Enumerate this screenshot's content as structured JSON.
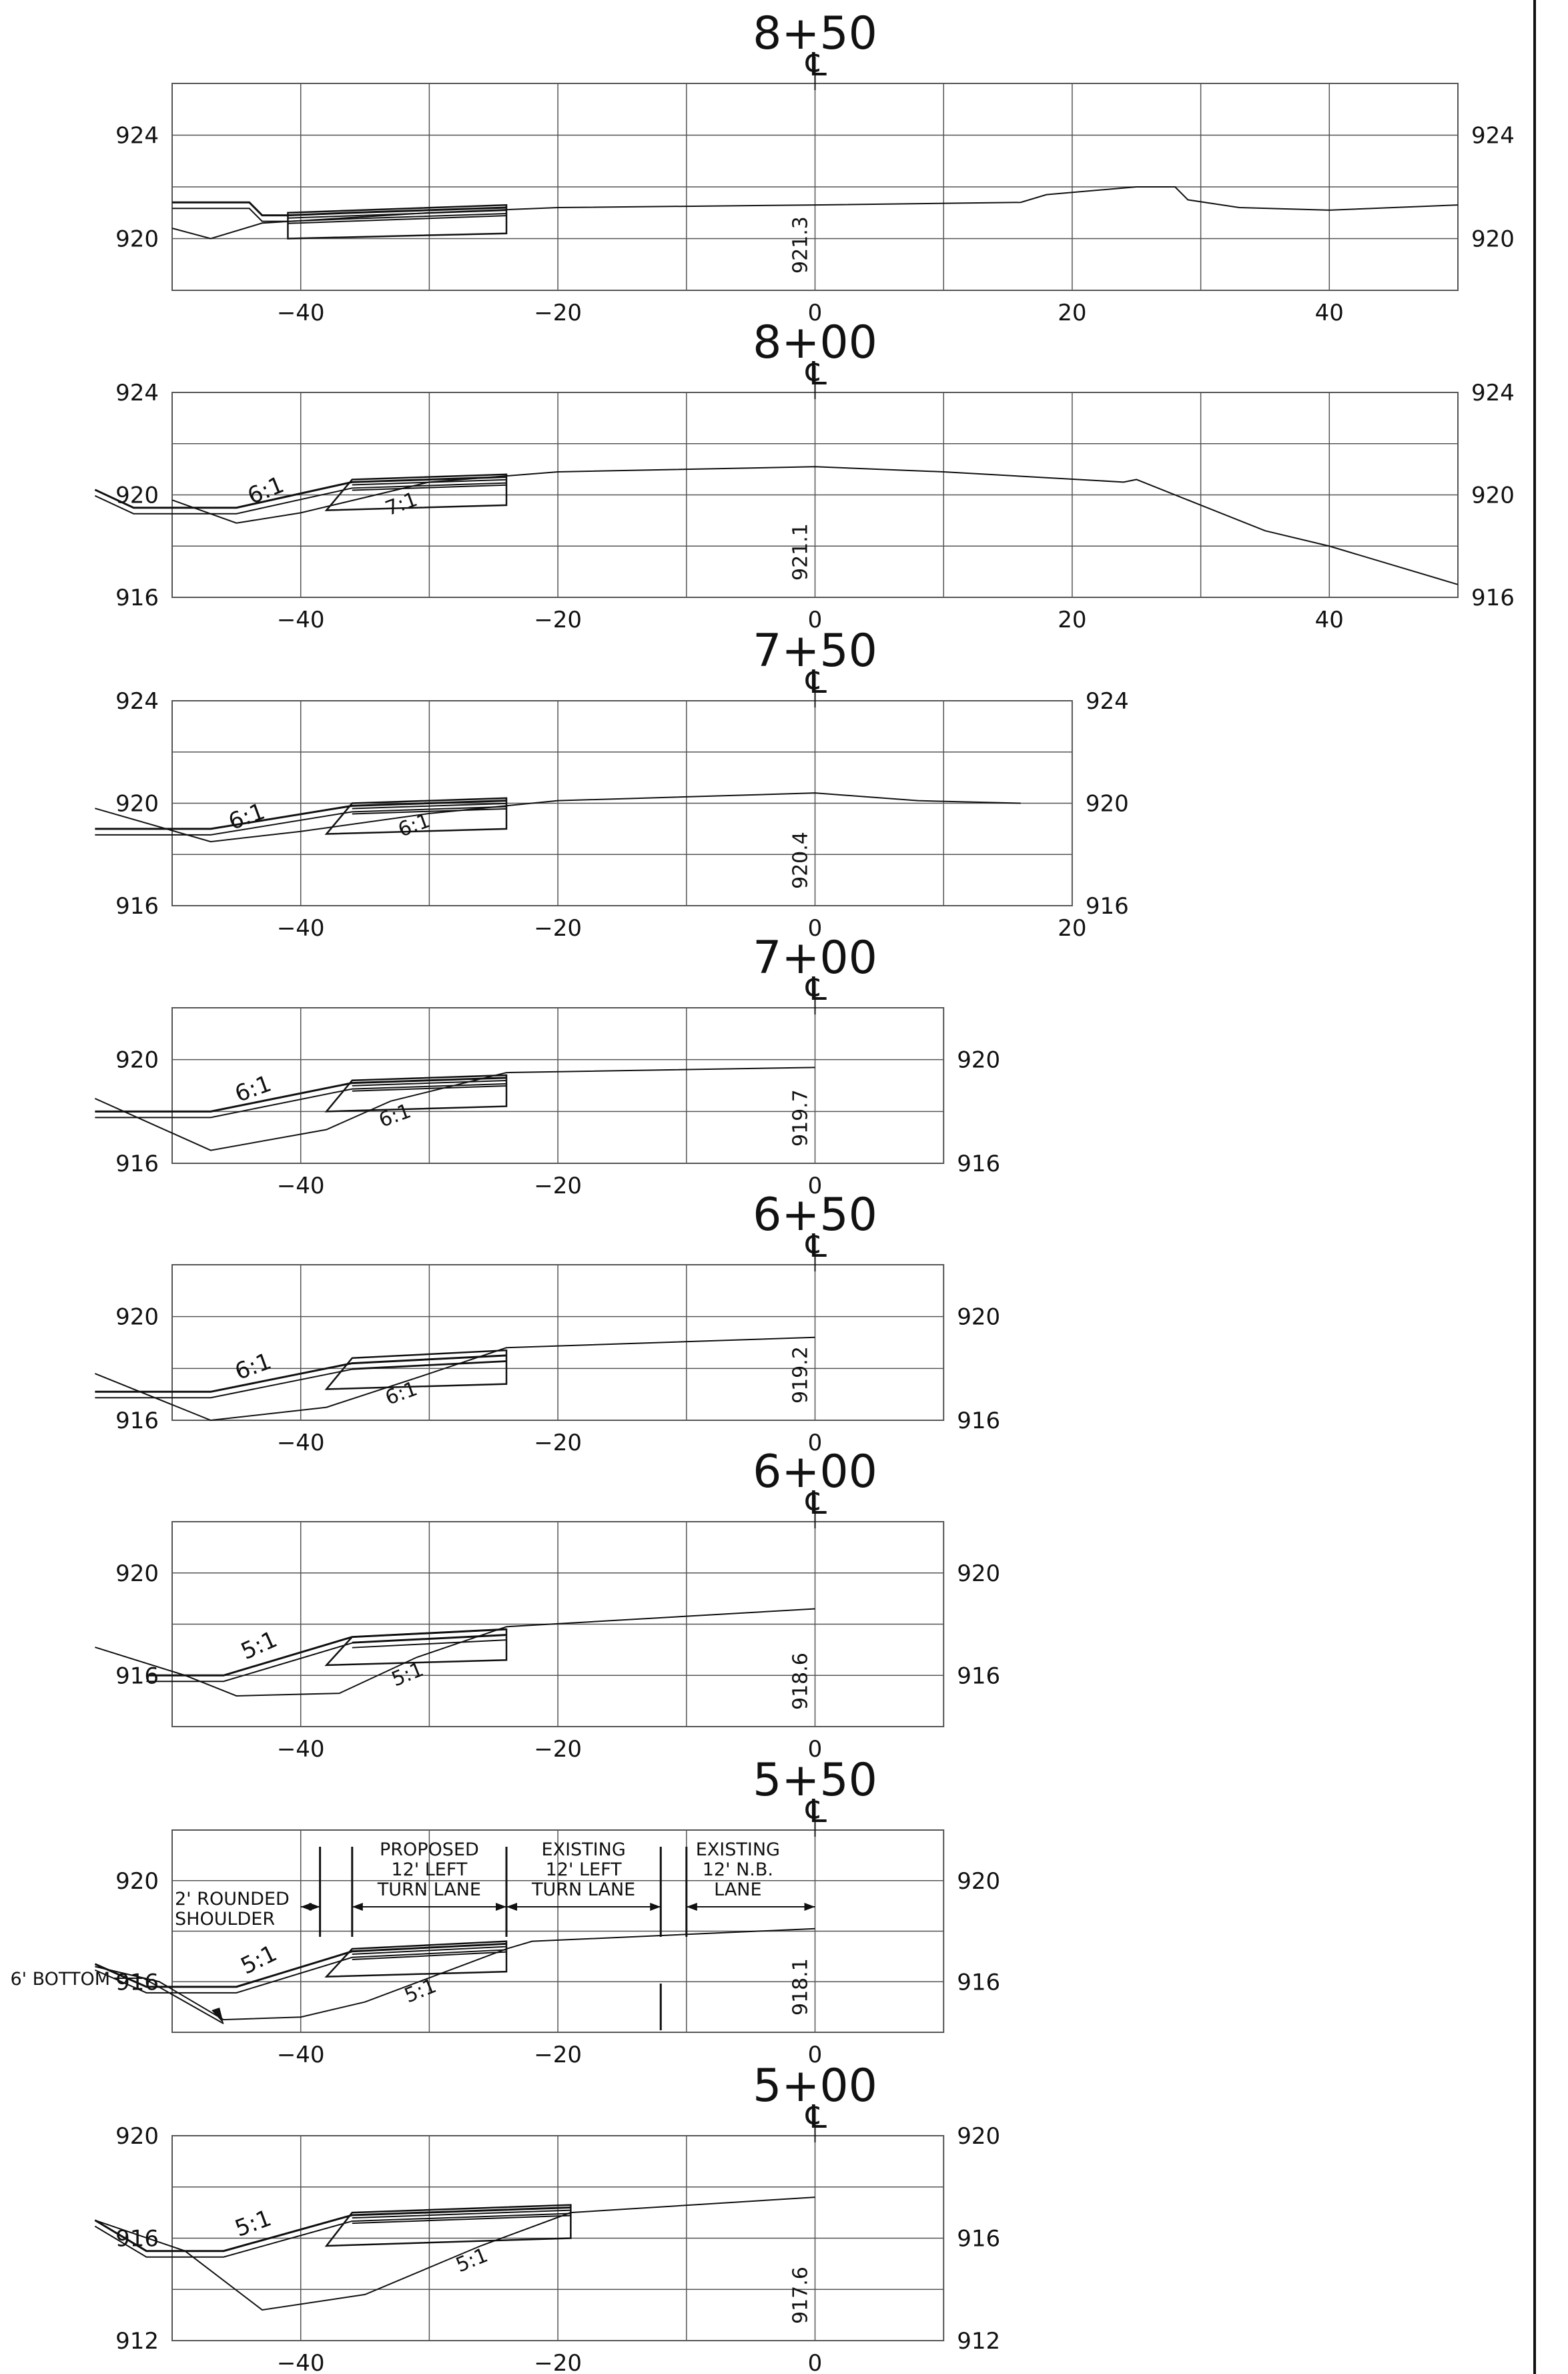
{
  "sheet": {
    "line_color": "#111111",
    "grid_color": "#555555",
    "background": "#ffffff"
  },
  "sections": [
    {
      "station": "8+50",
      "centerline_symbol": "℄",
      "cl_elevation": "921.3",
      "x_range": [
        -50,
        50
      ],
      "y_range": [
        918,
        926
      ],
      "x_ticks": [
        -40,
        -20,
        0,
        20,
        40
      ],
      "x_tick_labels": [
        "−40",
        "−20",
        "0",
        "20",
        "40"
      ],
      "y_ticks": [
        920,
        924
      ],
      "y_tick_labels": [
        "920",
        "924"
      ],
      "existing_ground": [
        [
          -50,
          920.4
        ],
        [
          -47,
          920
        ],
        [
          -43,
          920.6
        ],
        [
          -30,
          921
        ],
        [
          -20,
          921.2
        ],
        [
          0,
          921.3
        ],
        [
          16,
          921.4
        ],
        [
          18,
          921.7
        ],
        [
          25,
          922
        ],
        [
          28,
          922
        ],
        [
          29,
          921.5
        ],
        [
          33,
          921.2
        ],
        [
          40,
          921.1
        ],
        [
          50,
          921.3
        ]
      ],
      "proposed_surface": [
        [
          -50,
          921.4
        ],
        [
          -44,
          921.4
        ],
        [
          -43,
          920.9
        ],
        [
          -41,
          920.9
        ],
        [
          -36,
          921
        ],
        [
          -24,
          921.2
        ]
      ],
      "pavement": [
        [
          -41,
          921
        ],
        [
          -24,
          921.3
        ],
        [
          -24,
          920.2
        ],
        [
          -41,
          920
        ]
      ],
      "foreslope": null,
      "existing_slope": null
    },
    {
      "station": "8+00",
      "centerline_symbol": "℄",
      "cl_elevation": "921.1",
      "x_range": [
        -50,
        50
      ],
      "y_range": [
        916,
        924
      ],
      "x_ticks": [
        -40,
        -20,
        0,
        20,
        40
      ],
      "x_tick_labels": [
        "−40",
        "−20",
        "0",
        "20",
        "40"
      ],
      "y_ticks": [
        916,
        920,
        924
      ],
      "y_tick_labels": [
        "916",
        "920",
        "924"
      ],
      "existing_ground": [
        [
          -50,
          919.8
        ],
        [
          -45,
          918.9
        ],
        [
          -40,
          919.3
        ],
        [
          -30,
          920.5
        ],
        [
          -20,
          920.9
        ],
        [
          0,
          921.1
        ],
        [
          10,
          920.9
        ],
        [
          24,
          920.5
        ],
        [
          25,
          920.6
        ],
        [
          35,
          918.6
        ],
        [
          40,
          918
        ],
        [
          50,
          916.5
        ]
      ],
      "proposed_surface": [
        [
          -56,
          920.2
        ],
        [
          -53,
          919.5
        ],
        [
          -45,
          919.5
        ],
        [
          -36,
          920.5
        ],
        [
          -24,
          920.7
        ]
      ],
      "pavement": [
        [
          -36,
          920.6
        ],
        [
          -24,
          920.8
        ],
        [
          -24,
          919.6
        ],
        [
          -38,
          919.4
        ]
      ],
      "foreslope": {
        "label": "6:1",
        "x": -42.5,
        "y": 919.9,
        "angle": -22
      },
      "existing_slope": {
        "label": "7:1",
        "x": -32,
        "y": 919.4,
        "angle": -20
      }
    },
    {
      "station": "7+50",
      "centerline_symbol": "℄",
      "cl_elevation": "920.4",
      "x_range": [
        -50,
        20
      ],
      "y_range": [
        916,
        924
      ],
      "x_ticks": [
        -40,
        -20,
        0,
        20
      ],
      "x_tick_labels": [
        "−40",
        "−20",
        "0",
        "20"
      ],
      "y_ticks": [
        916,
        920,
        924
      ],
      "y_tick_labels": [
        "916",
        "920",
        "924"
      ],
      "existing_ground": [
        [
          -56,
          919.8
        ],
        [
          -47,
          918.5
        ],
        [
          -40,
          918.9
        ],
        [
          -30,
          919.6
        ],
        [
          -20,
          920.1
        ],
        [
          0,
          920.4
        ],
        [
          8,
          920.1
        ],
        [
          16,
          920
        ]
      ],
      "proposed_surface": [
        [
          -56,
          919
        ],
        [
          -47,
          919
        ],
        [
          -36,
          919.9
        ],
        [
          -24,
          920.1
        ]
      ],
      "pavement": [
        [
          -36,
          920
        ],
        [
          -24,
          920.2
        ],
        [
          -24,
          919
        ],
        [
          -38,
          918.8
        ]
      ],
      "foreslope": {
        "label": "6:1",
        "x": -44,
        "y": 919.2,
        "angle": -20
      },
      "existing_slope": {
        "label": "6:1",
        "x": -31,
        "y": 918.9,
        "angle": -20
      }
    },
    {
      "station": "7+00",
      "centerline_symbol": "℄",
      "cl_elevation": "919.7",
      "x_range": [
        -50,
        10
      ],
      "y_range": [
        916,
        922
      ],
      "x_ticks": [
        -40,
        -20,
        0
      ],
      "x_tick_labels": [
        "−40",
        "−20",
        "0"
      ],
      "y_ticks": [
        916,
        920
      ],
      "y_tick_labels": [
        "916",
        "920"
      ],
      "existing_ground": [
        [
          -56,
          918.5
        ],
        [
          -47,
          916.5
        ],
        [
          -38,
          917.3
        ],
        [
          -33,
          918.4
        ],
        [
          -24,
          919.5
        ],
        [
          0,
          919.7
        ]
      ],
      "proposed_surface": [
        [
          -56,
          918
        ],
        [
          -47,
          918
        ],
        [
          -36,
          919.1
        ],
        [
          -24,
          919.3
        ]
      ],
      "pavement": [
        [
          -36,
          919.2
        ],
        [
          -24,
          919.4
        ],
        [
          -24,
          918.2
        ],
        [
          -38,
          918
        ]
      ],
      "foreslope": {
        "label": "6:1",
        "x": -43.5,
        "y": 918.6,
        "angle": -20
      },
      "existing_slope": {
        "label": "6:1",
        "x": -32.5,
        "y": 917.6,
        "angle": -20
      }
    },
    {
      "station": "6+50",
      "centerline_symbol": "℄",
      "cl_elevation": "919.2",
      "x_range": [
        -50,
        10
      ],
      "y_range": [
        916,
        922
      ],
      "x_ticks": [
        -40,
        -20,
        0
      ],
      "x_tick_labels": [
        "−40",
        "−20",
        "0"
      ],
      "y_ticks": [
        916,
        920
      ],
      "y_tick_labels": [
        "916",
        "920"
      ],
      "existing_ground": [
        [
          -56,
          917.8
        ],
        [
          -47,
          916
        ],
        [
          -38,
          916.5
        ],
        [
          -30,
          917.8
        ],
        [
          -24,
          918.8
        ],
        [
          0,
          919.2
        ]
      ],
      "proposed_surface": [
        [
          -56,
          917.1
        ],
        [
          -47,
          917.1
        ],
        [
          -36,
          918.2
        ],
        [
          -24,
          918.5
        ]
      ],
      "pavement": [
        [
          -36,
          918.4
        ],
        [
          -24,
          918.7
        ],
        [
          -24,
          917.4
        ],
        [
          -38,
          917.2
        ]
      ],
      "foreslope": {
        "label": "6:1",
        "x": -43.5,
        "y": 917.8,
        "angle": -20
      },
      "existing_slope": {
        "label": "6:1",
        "x": -32,
        "y": 916.8,
        "angle": -20
      }
    },
    {
      "station": "6+00",
      "centerline_symbol": "℄",
      "cl_elevation": "918.6",
      "x_range": [
        -50,
        10
      ],
      "y_range": [
        914,
        922
      ],
      "x_ticks": [
        -40,
        -20,
        0
      ],
      "x_tick_labels": [
        "−40",
        "−20",
        "0"
      ],
      "y_ticks": [
        916,
        920
      ],
      "y_tick_labels": [
        "916",
        "920"
      ],
      "existing_ground": [
        [
          -56,
          917.1
        ],
        [
          -49,
          916
        ],
        [
          -45,
          915.2
        ],
        [
          -37,
          915.3
        ],
        [
          -31,
          916.7
        ],
        [
          -24,
          917.9
        ],
        [
          0,
          918.6
        ]
      ],
      "proposed_surface": [
        [
          -52,
          916
        ],
        [
          -46,
          916
        ],
        [
          -36,
          917.5
        ],
        [
          -24,
          917.8
        ]
      ],
      "pavement": [
        [
          -36,
          917.5
        ],
        [
          -24,
          917.8
        ],
        [
          -24,
          916.6
        ],
        [
          -38,
          916.4
        ]
      ],
      "foreslope": {
        "label": "5:1",
        "x": -43,
        "y": 916.9,
        "angle": -24
      },
      "existing_slope": {
        "label": "5:1",
        "x": -31.5,
        "y": 915.8,
        "angle": -22
      }
    },
    {
      "station": "5+50",
      "centerline_symbol": "℄",
      "cl_elevation": "918.1",
      "x_range": [
        -50,
        10
      ],
      "y_range": [
        914,
        922
      ],
      "x_ticks": [
        -40,
        -20,
        0
      ],
      "x_tick_labels": [
        "−40",
        "−20",
        "0"
      ],
      "y_ticks": [
        916,
        920
      ],
      "y_tick_labels": [
        "916",
        "920"
      ],
      "existing_ground": [
        [
          -56,
          916.6
        ],
        [
          -51,
          916
        ],
        [
          -46,
          914.5
        ],
        [
          -40,
          914.6
        ],
        [
          -35,
          915.2
        ],
        [
          -24,
          917.3
        ],
        [
          -22,
          917.6
        ],
        [
          0,
          918.1
        ]
      ],
      "proposed_surface": [
        [
          -56,
          916.7
        ],
        [
          -52,
          915.8
        ],
        [
          -45,
          915.8
        ],
        [
          -36,
          917.2
        ],
        [
          -24,
          917.5
        ]
      ],
      "pavement": [
        [
          -36,
          917.3
        ],
        [
          -24,
          917.6
        ],
        [
          -24,
          916.4
        ],
        [
          -38,
          916.2
        ]
      ],
      "foreslope": {
        "label": "5:1",
        "x": -43,
        "y": 916.6,
        "angle": -26
      },
      "existing_slope": {
        "label": "5:1",
        "x": -30.5,
        "y": 915.4,
        "angle": -22
      },
      "annotations": {
        "bottom_label": "6' BOTTOM",
        "shoulder_line1": "2' ROUNDED",
        "shoulder_line2": "SHOULDER",
        "proposed_line1": "PROPOSED",
        "proposed_line2": "12' LEFT",
        "proposed_line3": "TURN LANE",
        "existing_left_line1": "EXISTING",
        "existing_left_line2": "12' LEFT",
        "existing_left_line3": "TURN LANE",
        "existing_nb_line1": "EXISTING",
        "existing_nb_line2": "12' N.B.",
        "existing_nb_line3": "LANE"
      }
    },
    {
      "station": "5+00",
      "centerline_symbol": "℄",
      "cl_elevation": "917.6",
      "x_range": [
        -50,
        10
      ],
      "y_range": [
        912,
        920
      ],
      "x_ticks": [
        -40,
        -20,
        0
      ],
      "x_tick_labels": [
        "−40",
        "−20",
        "0"
      ],
      "y_ticks": [
        912,
        916,
        920
      ],
      "y_tick_labels": [
        "912",
        "916",
        "920"
      ],
      "existing_ground": [
        [
          -56,
          916.7
        ],
        [
          -49,
          915.5
        ],
        [
          -43,
          913.2
        ],
        [
          -35,
          913.8
        ],
        [
          -26,
          915.7
        ],
        [
          -19,
          917
        ],
        [
          0,
          917.6
        ]
      ],
      "proposed_surface": [
        [
          -56,
          916.7
        ],
        [
          -52,
          915.5
        ],
        [
          -46,
          915.5
        ],
        [
          -36,
          916.9
        ],
        [
          -19,
          917.2
        ]
      ],
      "pavement": [
        [
          -36,
          917
        ],
        [
          -19,
          917.3
        ],
        [
          -19,
          916
        ],
        [
          -38,
          915.7
        ]
      ],
      "foreslope": {
        "label": "5:1",
        "x": -43.5,
        "y": 916.3,
        "angle": -20
      },
      "existing_slope": {
        "label": "5:1",
        "x": -26.5,
        "y": 914.9,
        "angle": -22
      }
    }
  ]
}
